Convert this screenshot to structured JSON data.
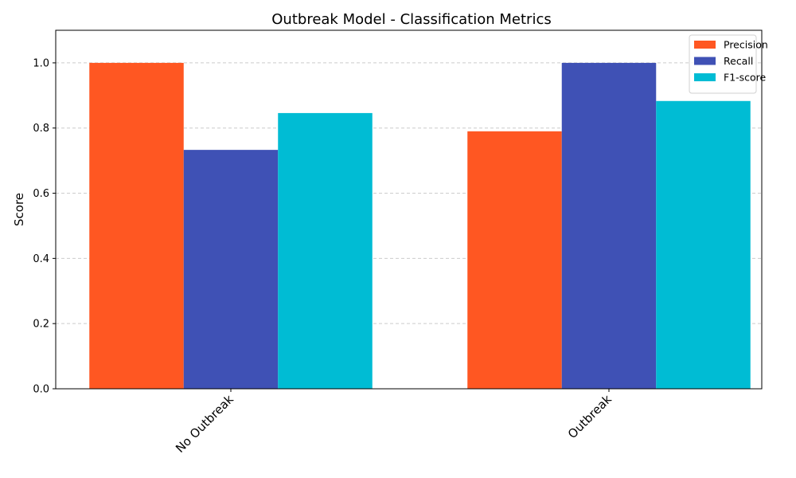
{
  "chart_data": {
    "type": "bar",
    "title": "Outbreak Model - Classification Metrics",
    "xlabel": "",
    "ylabel": "Score",
    "categories": [
      "No Outbreak",
      "Outbreak"
    ],
    "series": [
      {
        "name": "Precision",
        "color": "#FF5722",
        "values": [
          1.0,
          0.79
        ]
      },
      {
        "name": "Recall",
        "color": "#3F51B5",
        "values": [
          0.733,
          1.0
        ]
      },
      {
        "name": "F1-score",
        "color": "#00BCD4",
        "values": [
          0.846,
          0.883
        ]
      }
    ],
    "ylim": [
      0,
      1.1
    ],
    "yticks": [
      "0.0",
      "0.2",
      "0.4",
      "0.6",
      "0.8",
      "1.0"
    ],
    "grid": "y-dashed",
    "legend_position": "top-right",
    "category_label_rotation": "45"
  }
}
